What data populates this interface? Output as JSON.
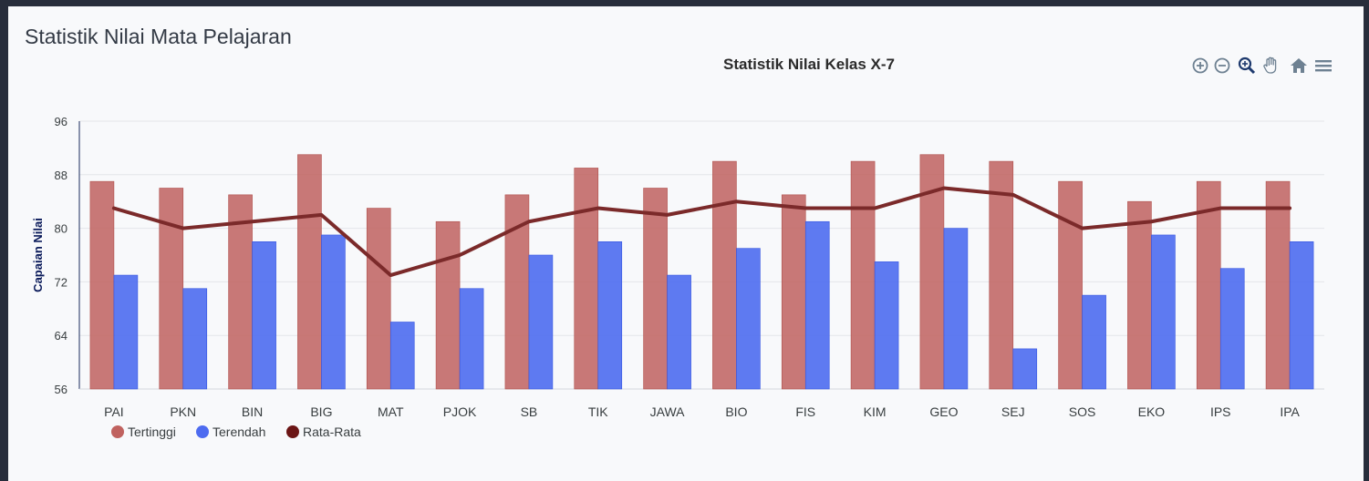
{
  "card": {
    "title": "Statistik Nilai Mata Pelajaran"
  },
  "toolbar": {
    "buttons": [
      "zoom-in-icon",
      "zoom-out-icon",
      "selection-zoom-icon",
      "pan-hand-icon",
      "reset-home-icon",
      "menu-icon"
    ]
  },
  "colors": {
    "tertinggi": "#c0625f",
    "terendah": "#4d6bf0",
    "rata": "#7b2a2a",
    "legend_rata": "#6b1515",
    "grid": "#e3e5ea",
    "axis_text": "#373d3f",
    "ylabel": "#0a1a5a",
    "toolbar": "#6e8192"
  },
  "chart_data": {
    "type": "bar",
    "title": "Statistik Nilai Kelas X-7",
    "ylabel": "Capaian Nilai",
    "xlabel": "",
    "ylim": [
      56,
      96
    ],
    "yticks": [
      56,
      64,
      72,
      80,
      88,
      96
    ],
    "grid": true,
    "legend_position": "bottom-left",
    "categories": [
      "PAI",
      "PKN",
      "BIN",
      "BIG",
      "MAT",
      "PJOK",
      "SB",
      "TIK",
      "JAWA",
      "BIO",
      "FIS",
      "KIM",
      "GEO",
      "SEJ",
      "SOS",
      "EKO",
      "IPS",
      "IPA"
    ],
    "series": [
      {
        "name": "Tertinggi",
        "kind": "bar",
        "values": [
          87,
          86,
          85,
          91,
          83,
          81,
          85,
          89,
          86,
          90,
          85,
          90,
          91,
          90,
          87,
          84,
          87,
          87
        ]
      },
      {
        "name": "Terendah",
        "kind": "bar",
        "values": [
          73,
          71,
          78,
          79,
          66,
          71,
          76,
          78,
          73,
          77,
          81,
          75,
          80,
          62,
          70,
          79,
          74,
          78
        ]
      },
      {
        "name": "Rata-Rata",
        "kind": "line",
        "values": [
          83,
          80,
          81,
          82,
          73,
          76,
          81,
          83,
          82,
          84,
          83,
          83,
          86,
          85,
          80,
          81,
          83,
          83
        ]
      }
    ]
  }
}
